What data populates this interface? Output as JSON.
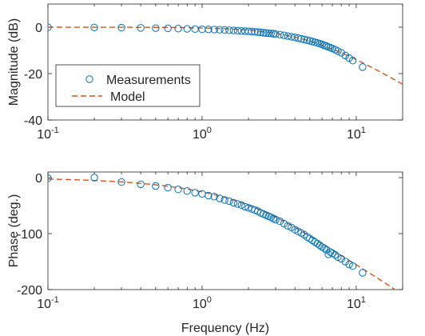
{
  "chart_data": [
    {
      "type": "scatter",
      "xscale": "log",
      "xlim": [
        0.1,
        20
      ],
      "ylim": [
        -40,
        10
      ],
      "yticks": [
        0,
        -20,
        -40
      ],
      "ytick_labels": [
        "0",
        "-20",
        "-40"
      ],
      "xtick_labels": [
        {
          "base": "10",
          "exp": "-1"
        },
        {
          "base": "10",
          "exp": "0"
        },
        {
          "base": "10",
          "exp": "1"
        }
      ],
      "xlabel": "",
      "ylabel": "Magnitude (dB)",
      "legend": {
        "placement": "center-left",
        "entries": [
          "Measurements",
          "Model"
        ]
      },
      "series": [
        {
          "name": "Measurements",
          "style": "circle-markers",
          "color": "#0072bd",
          "x": [
            0.1,
            0.2,
            0.3,
            0.4,
            0.5,
            0.6,
            0.7,
            0.8,
            0.9,
            1.0,
            1.1,
            1.2,
            1.3,
            1.4,
            1.5,
            1.6,
            1.7,
            1.8,
            1.9,
            2.0,
            2.1,
            2.2,
            2.3,
            2.4,
            2.5,
            2.6,
            2.7,
            2.8,
            2.9,
            3.0,
            3.2,
            3.4,
            3.6,
            3.8,
            4.0,
            4.2,
            4.4,
            4.6,
            4.8,
            5.0,
            5.2,
            5.4,
            5.6,
            5.8,
            6.0,
            6.2,
            6.4,
            6.6,
            6.8,
            7.0,
            7.3,
            7.6,
            8.0,
            8.5,
            9.0,
            9.5,
            11.0
          ],
          "y": [
            -0.02,
            -0.1,
            -0.2,
            -0.3,
            -0.4,
            -0.5,
            -0.6,
            -0.7,
            -0.8,
            -0.9,
            -0.95,
            -1.0,
            -1.1,
            -1.2,
            -1.3,
            -1.4,
            -1.5,
            -1.6,
            -1.7,
            -1.8,
            -1.9,
            -2.0,
            -2.1,
            -2.2,
            -2.4,
            -2.5,
            -2.6,
            -2.7,
            -2.8,
            -3.0,
            -3.2,
            -3.5,
            -3.8,
            -4.1,
            -4.4,
            -4.7,
            -5.0,
            -5.3,
            -5.6,
            -5.9,
            -6.2,
            -6.5,
            -6.8,
            -7.1,
            -7.4,
            -7.8,
            -8.1,
            -8.5,
            -8.8,
            -9.2,
            -9.7,
            -10.3,
            -11.0,
            -12.2,
            -13.3,
            -14.4,
            -17.2
          ]
        },
        {
          "name": "Model",
          "style": "dashed-line",
          "color": "#d95319",
          "model": {
            "gain": 1,
            "corner_hz": 5,
            "order": 2,
            "delay_s": 0.008
          }
        }
      ]
    },
    {
      "type": "scatter",
      "xscale": "log",
      "xlim": [
        0.1,
        20
      ],
      "ylim": [
        -200,
        10
      ],
      "yticks": [
        0,
        -100,
        -200
      ],
      "ytick_labels": [
        "0",
        "-100",
        "-200"
      ],
      "xtick_labels": [
        {
          "base": "10",
          "exp": "-1"
        },
        {
          "base": "10",
          "exp": "0"
        },
        {
          "base": "10",
          "exp": "1"
        }
      ],
      "xlabel": "Frequency (Hz)",
      "ylabel": "Phase (deg.)",
      "series": [
        {
          "name": "Measurements",
          "style": "circle-markers",
          "color": "#0072bd",
          "x": [
            0.1,
            0.2,
            0.3,
            0.4,
            0.5,
            0.6,
            0.7,
            0.8,
            0.9,
            1.0,
            1.1,
            1.2,
            1.3,
            1.4,
            1.5,
            1.6,
            1.7,
            1.8,
            1.9,
            2.0,
            2.1,
            2.2,
            2.3,
            2.4,
            2.5,
            2.6,
            2.7,
            2.8,
            2.9,
            3.0,
            3.2,
            3.4,
            3.6,
            3.8,
            4.0,
            4.2,
            4.4,
            4.6,
            4.8,
            5.0,
            5.2,
            5.4,
            5.6,
            5.8,
            6.0,
            6.2,
            6.4,
            6.6,
            6.8,
            7.0,
            7.3,
            7.6,
            8.0,
            8.5,
            9.0,
            9.5,
            11.0
          ],
          "y": [
            -1,
            0,
            -8,
            -12,
            -15,
            -18,
            -21,
            -24,
            -27,
            -29,
            -32,
            -34,
            -37,
            -40,
            -42,
            -45,
            -47,
            -49,
            -52,
            -54,
            -56,
            -58,
            -60,
            -63,
            -65,
            -67,
            -69,
            -71,
            -73,
            -75,
            -78,
            -82,
            -86,
            -89,
            -93,
            -96,
            -99,
            -102,
            -106,
            -109,
            -112,
            -115,
            -118,
            -121,
            -124,
            -126,
            -129,
            -137,
            -133,
            -135,
            -138,
            -142,
            -145,
            -150,
            -155,
            -158,
            -170
          ]
        },
        {
          "name": "Model",
          "style": "dashed-line",
          "color": "#d95319",
          "model": {
            "gain": 1,
            "corner_hz": 5,
            "order": 2,
            "delay_s": 0.008
          }
        }
      ]
    }
  ],
  "colors": {
    "axes": "#262626",
    "measurements": "#0072bd",
    "model": "#d95319",
    "background": "#ffffff"
  }
}
